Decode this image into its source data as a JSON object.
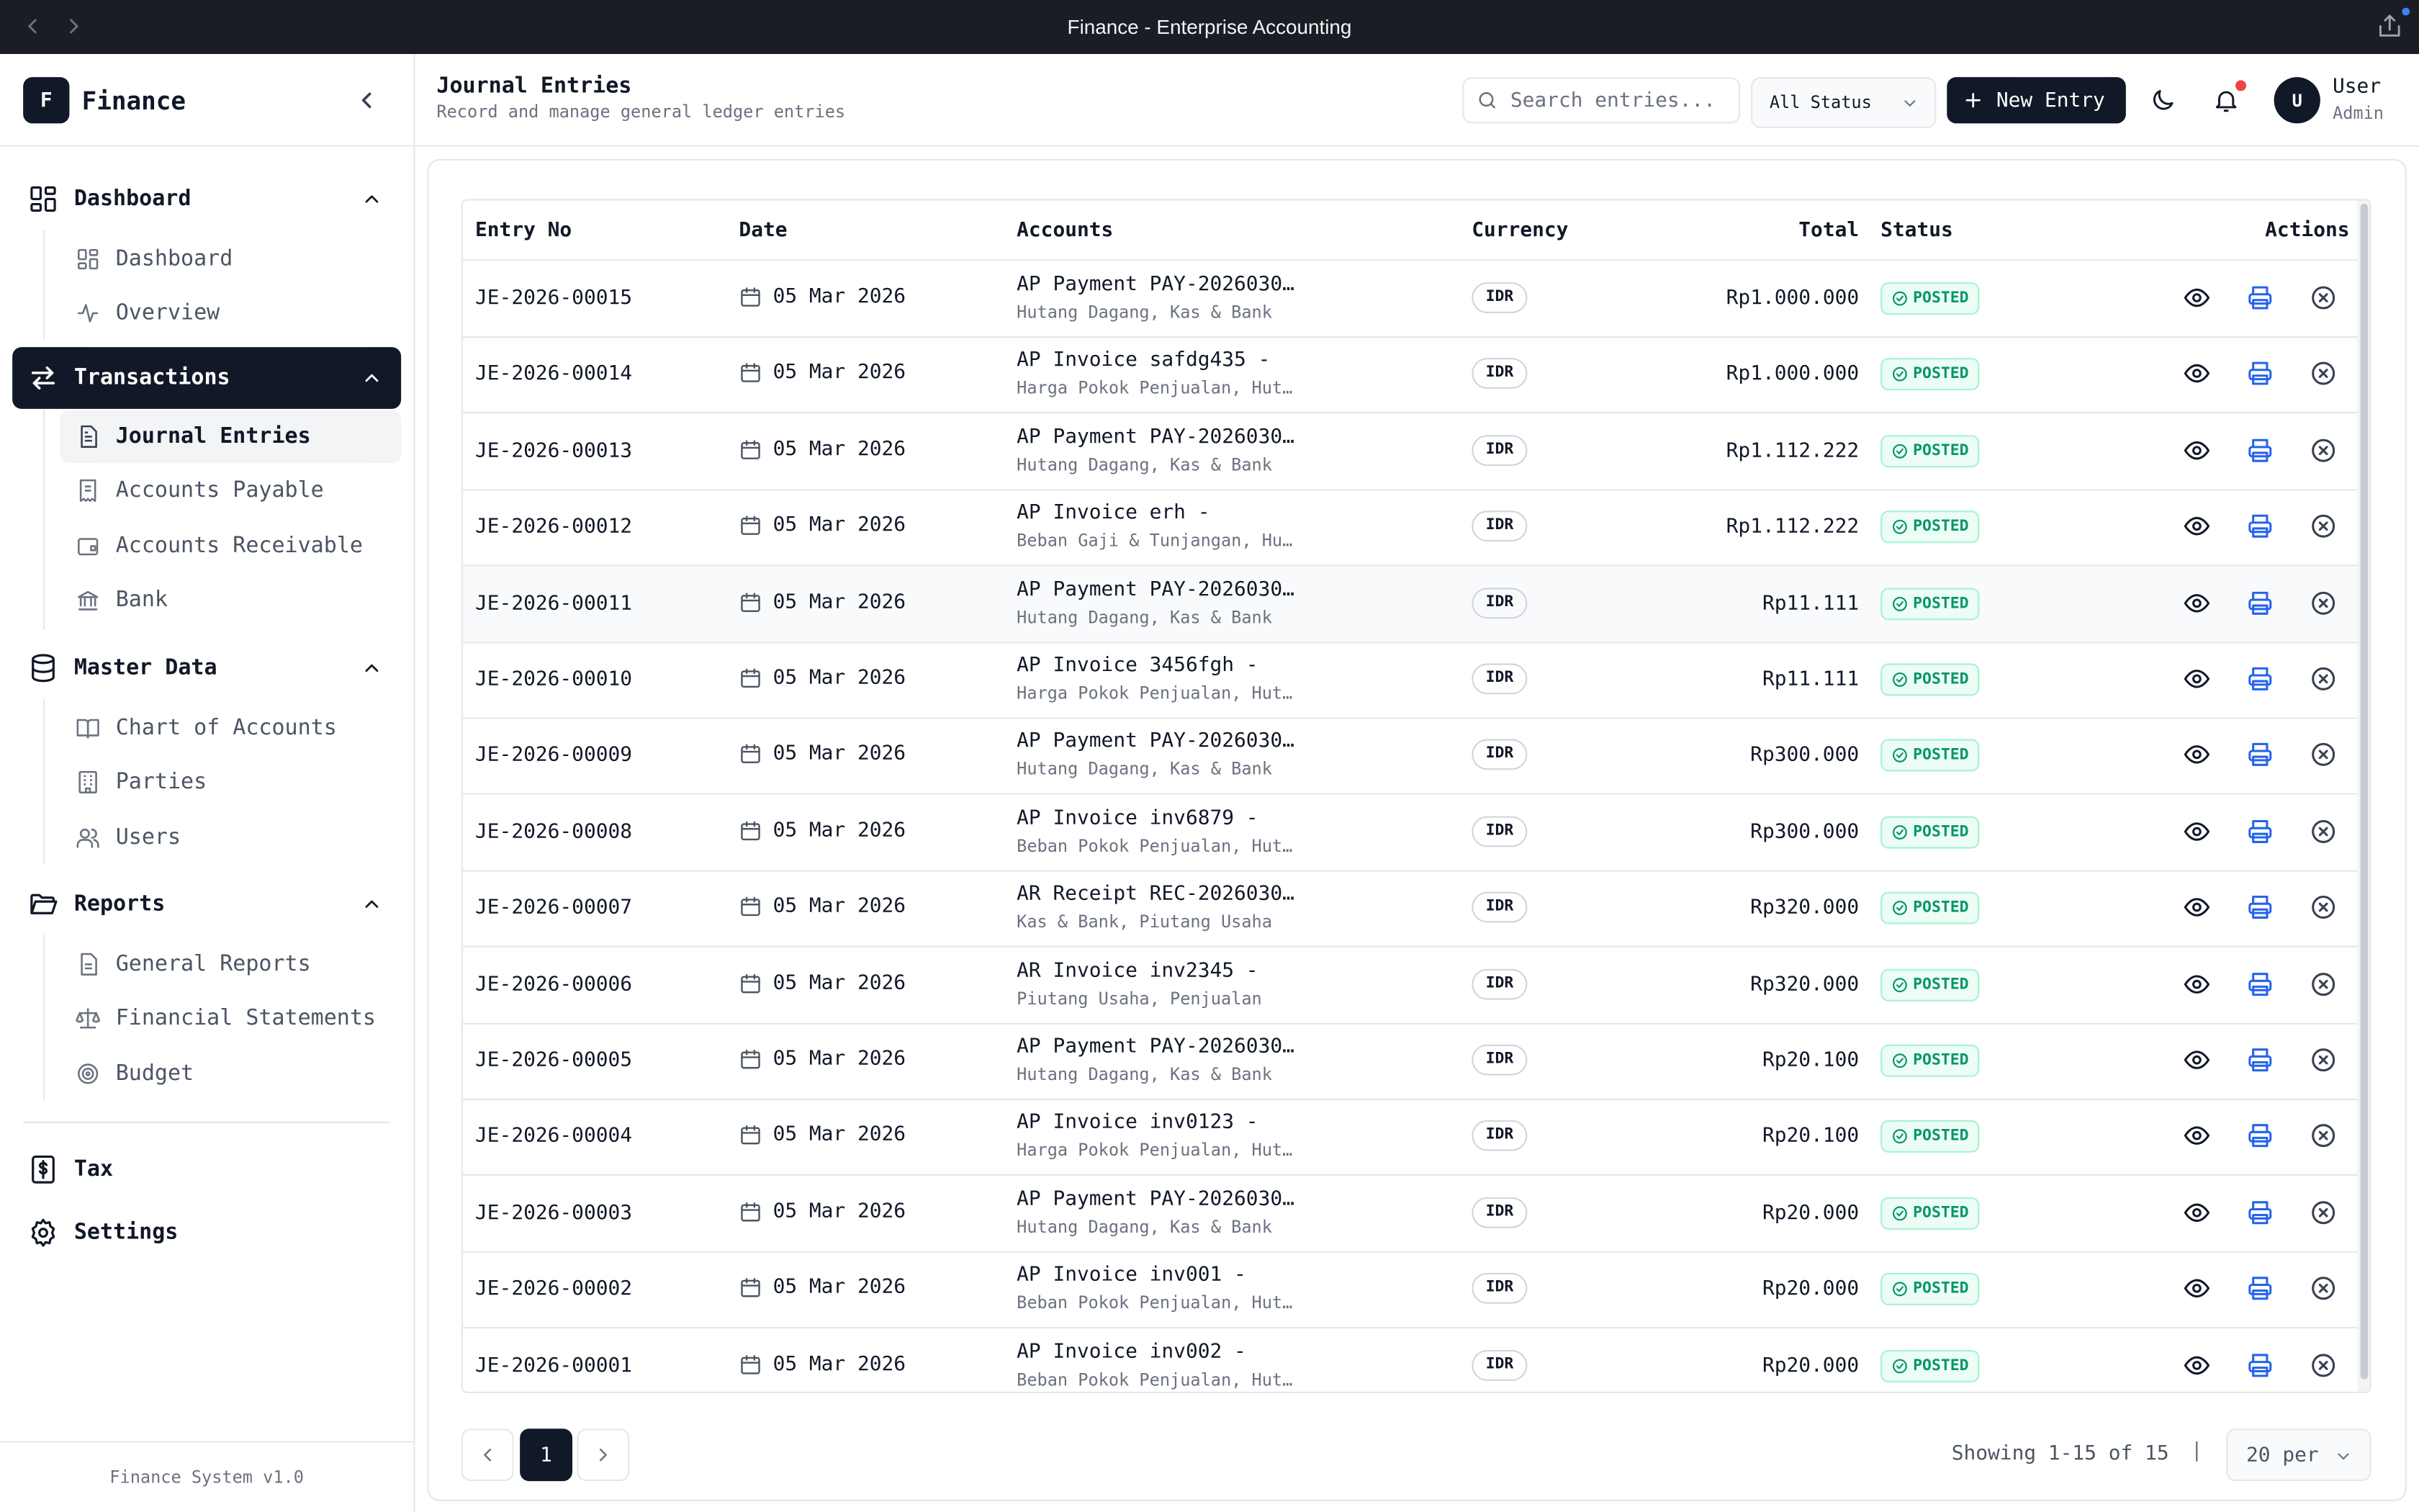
{
  "window": {
    "title": "Finance - Enterprise Accounting"
  },
  "brand": {
    "logo_letter": "F",
    "name": "Finance"
  },
  "sidebar": {
    "sections": [
      {
        "label": "Dashboard",
        "icon": "layout-grid-icon",
        "items": [
          {
            "label": "Dashboard",
            "icon": "layout-grid-icon"
          },
          {
            "label": "Overview",
            "icon": "activity-icon"
          }
        ]
      },
      {
        "label": "Transactions",
        "icon": "arrows-left-right-icon",
        "active": true,
        "items": [
          {
            "label": "Journal Entries",
            "icon": "file-text-icon",
            "active": true
          },
          {
            "label": "Accounts Payable",
            "icon": "receipt-icon"
          },
          {
            "label": "Accounts Receivable",
            "icon": "wallet-icon"
          },
          {
            "label": "Bank",
            "icon": "landmark-icon"
          }
        ]
      },
      {
        "label": "Master Data",
        "icon": "database-icon",
        "items": [
          {
            "label": "Chart of Accounts",
            "icon": "book-open-icon"
          },
          {
            "label": "Parties",
            "icon": "building-icon"
          },
          {
            "label": "Users",
            "icon": "users-icon"
          }
        ]
      },
      {
        "label": "Reports",
        "icon": "folder-open-icon",
        "items": [
          {
            "label": "General Reports",
            "icon": "file-lines-icon"
          },
          {
            "label": "Financial Statements",
            "icon": "scale-icon"
          },
          {
            "label": "Budget",
            "icon": "target-icon"
          }
        ]
      }
    ],
    "single": [
      {
        "label": "Tax",
        "icon": "dollar-file-icon"
      },
      {
        "label": "Settings",
        "icon": "gear-icon"
      }
    ],
    "footer": "Finance System v1.0"
  },
  "header": {
    "title": "Journal Entries",
    "subtitle": "Record and manage general ledger entries",
    "search_placeholder": "Search entries...",
    "status_filter": "All Status",
    "new_button": "New Entry",
    "user": {
      "initial": "U",
      "name": "User",
      "role": "Admin"
    }
  },
  "table": {
    "columns": [
      "Entry No",
      "Date",
      "Accounts",
      "Currency",
      "Total",
      "Status",
      "Actions"
    ],
    "rows": [
      {
        "no": "JE-2026-00015",
        "date": "05 Mar 2026",
        "acc1": "AP Payment PAY-2026030…",
        "acc2": "Hutang Dagang, Kas & Bank",
        "cur": "IDR",
        "total": "Rp1.000.000",
        "status": "POSTED"
      },
      {
        "no": "JE-2026-00014",
        "date": "05 Mar 2026",
        "acc1": "AP Invoice safdg435 -",
        "acc2": "Harga Pokok Penjualan, Hut…",
        "cur": "IDR",
        "total": "Rp1.000.000",
        "status": "POSTED"
      },
      {
        "no": "JE-2026-00013",
        "date": "05 Mar 2026",
        "acc1": "AP Payment PAY-2026030…",
        "acc2": "Hutang Dagang, Kas & Bank",
        "cur": "IDR",
        "total": "Rp1.112.222",
        "status": "POSTED"
      },
      {
        "no": "JE-2026-00012",
        "date": "05 Mar 2026",
        "acc1": "AP Invoice erh -",
        "acc2": "Beban Gaji & Tunjangan, Hu…",
        "cur": "IDR",
        "total": "Rp1.112.222",
        "status": "POSTED"
      },
      {
        "no": "JE-2026-00011",
        "date": "05 Mar 2026",
        "acc1": "AP Payment PAY-2026030…",
        "acc2": "Hutang Dagang, Kas & Bank",
        "cur": "IDR",
        "total": "Rp11.111",
        "status": "POSTED"
      },
      {
        "no": "JE-2026-00010",
        "date": "05 Mar 2026",
        "acc1": "AP Invoice 3456fgh -",
        "acc2": "Harga Pokok Penjualan, Hut…",
        "cur": "IDR",
        "total": "Rp11.111",
        "status": "POSTED"
      },
      {
        "no": "JE-2026-00009",
        "date": "05 Mar 2026",
        "acc1": "AP Payment PAY-2026030…",
        "acc2": "Hutang Dagang, Kas & Bank",
        "cur": "IDR",
        "total": "Rp300.000",
        "status": "POSTED"
      },
      {
        "no": "JE-2026-00008",
        "date": "05 Mar 2026",
        "acc1": "AP Invoice inv6879 -",
        "acc2": "Beban Pokok Penjualan, Hut…",
        "cur": "IDR",
        "total": "Rp300.000",
        "status": "POSTED"
      },
      {
        "no": "JE-2026-00007",
        "date": "05 Mar 2026",
        "acc1": "AR Receipt REC-2026030…",
        "acc2": "Kas & Bank, Piutang Usaha",
        "cur": "IDR",
        "total": "Rp320.000",
        "status": "POSTED"
      },
      {
        "no": "JE-2026-00006",
        "date": "05 Mar 2026",
        "acc1": "AR Invoice inv2345 -",
        "acc2": "Piutang Usaha, Penjualan",
        "cur": "IDR",
        "total": "Rp320.000",
        "status": "POSTED"
      },
      {
        "no": "JE-2026-00005",
        "date": "05 Mar 2026",
        "acc1": "AP Payment PAY-2026030…",
        "acc2": "Hutang Dagang, Kas & Bank",
        "cur": "IDR",
        "total": "Rp20.100",
        "status": "POSTED"
      },
      {
        "no": "JE-2026-00004",
        "date": "05 Mar 2026",
        "acc1": "AP Invoice inv0123 -",
        "acc2": "Harga Pokok Penjualan, Hut…",
        "cur": "IDR",
        "total": "Rp20.100",
        "status": "POSTED"
      },
      {
        "no": "JE-2026-00003",
        "date": "05 Mar 2026",
        "acc1": "AP Payment PAY-2026030…",
        "acc2": "Hutang Dagang, Kas & Bank",
        "cur": "IDR",
        "total": "Rp20.000",
        "status": "POSTED"
      },
      {
        "no": "JE-2026-00002",
        "date": "05 Mar 2026",
        "acc1": "AP Invoice inv001 -",
        "acc2": "Beban Pokok Penjualan, Hut…",
        "cur": "IDR",
        "total": "Rp20.000",
        "status": "POSTED"
      },
      {
        "no": "JE-2026-00001",
        "date": "05 Mar 2026",
        "acc1": "AP Invoice inv002 -",
        "acc2": "Beban Pokok Penjualan, Hut…",
        "cur": "IDR",
        "total": "Rp20.000",
        "status": "POSTED"
      }
    ]
  },
  "pagination": {
    "current_page": "1",
    "showing": "Showing 1-15 of 15",
    "separator": "|",
    "per_page": "20 per"
  },
  "colors": {
    "accent": "#111827",
    "posted_text": "#059669",
    "posted_bg": "#ecfdf5",
    "print_icon": "#2563eb",
    "notification_dot": "#ef4444"
  }
}
